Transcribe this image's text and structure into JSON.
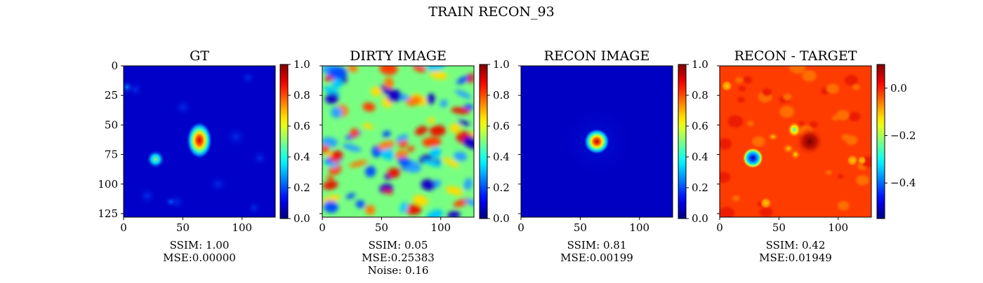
{
  "figure": {
    "suptitle": "TRAIN RECON_93"
  },
  "chart_data": [
    {
      "type": "heatmap",
      "title": "GT",
      "colormap": "jet",
      "x_ticks": [
        "0",
        "50",
        "100"
      ],
      "y_ticks": [
        "0",
        "25",
        "50",
        "75",
        "100",
        "125"
      ],
      "x_range": [
        0,
        128
      ],
      "y_range": [
        0,
        128
      ],
      "colorbar": {
        "range": [
          0.0,
          1.0
        ],
        "ticks": [
          "0.0",
          "0.2",
          "0.4",
          "0.6",
          "0.8",
          "1.0"
        ]
      },
      "captions": [
        "SSIM: 1.00",
        "MSE:0.00000"
      ],
      "ssim": 1.0,
      "mse": 0.0
    },
    {
      "type": "heatmap",
      "title": "DIRTY IMAGE",
      "colormap": "jet",
      "x_ticks": [
        "0",
        "50",
        "100"
      ],
      "x_range": [
        0,
        128
      ],
      "y_range": [
        0,
        128
      ],
      "colorbar": {
        "range": [
          0.0,
          1.0
        ],
        "ticks": [
          "0.0",
          "0.2",
          "0.4",
          "0.6",
          "0.8",
          "1.0"
        ]
      },
      "captions": [
        "SSIM: 0.05",
        "MSE:0.25383",
        "Noise: 0.16"
      ],
      "ssim": 0.05,
      "mse": 0.25383,
      "noise": 0.16
    },
    {
      "type": "heatmap",
      "title": "RECON IMAGE",
      "colormap": "jet",
      "x_ticks": [
        "0",
        "50",
        "100"
      ],
      "x_range": [
        0,
        128
      ],
      "y_range": [
        0,
        128
      ],
      "colorbar": {
        "range": [
          0.0,
          1.0
        ],
        "ticks": [
          "0.0",
          "0.2",
          "0.4",
          "0.6",
          "0.8",
          "1.0"
        ]
      },
      "captions": [
        "SSIM: 0.81",
        "MSE:0.00199"
      ],
      "ssim": 0.81,
      "mse": 0.00199
    },
    {
      "type": "heatmap",
      "title": "RECON - TARGET",
      "colormap": "jet",
      "x_ticks": [
        "0",
        "50",
        "100"
      ],
      "x_range": [
        0,
        128
      ],
      "y_range": [
        0,
        128
      ],
      "colorbar": {
        "range": [
          -0.55,
          0.1
        ],
        "ticks": [
          "0.0",
          "−0.2",
          "−0.4"
        ]
      },
      "captions": [
        "SSIM: 0.42",
        "MSE:0.01949"
      ],
      "ssim": 0.42,
      "mse": 0.01949
    }
  ]
}
